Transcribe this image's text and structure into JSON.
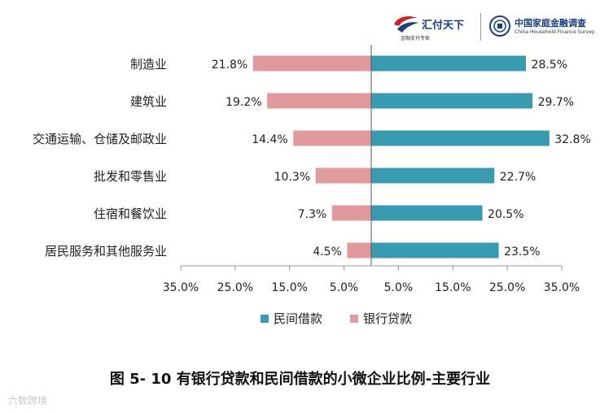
{
  "header": {
    "logo_left": {
      "name": "汇付天下",
      "tagline": "金融支付专家"
    },
    "logo_right": {
      "name": "中国家庭金融调查",
      "english": "China Household Finance Survey"
    }
  },
  "title": "图 5- 10 有银行贷款和民间借款的小微企业比例-主要行业",
  "watermark": "六数跨境",
  "colors": {
    "private_lending": "#3a9bb0",
    "bank_loan": "#de9a9c",
    "axis": "#999999",
    "text": "#222222"
  },
  "chart_data": {
    "type": "bar",
    "orientation": "horizontal-diverging",
    "categories": [
      "制造业",
      "建筑业",
      "交通运输、仓储及邮政业",
      "批发和零售业",
      "住宿和餐饮业",
      "居民服务和其他服务业"
    ],
    "series": [
      {
        "name": "民间借款",
        "direction": "right",
        "values": [
          28.5,
          29.7,
          32.8,
          22.7,
          20.5,
          23.5
        ],
        "labels": [
          "28.5%",
          "29.7%",
          "32.8%",
          "22.7%",
          "20.5%",
          "23.5%"
        ]
      },
      {
        "name": "银行贷款",
        "direction": "left",
        "values": [
          21.8,
          19.2,
          14.4,
          10.3,
          7.3,
          4.5
        ],
        "labels": [
          "21.8%",
          "19.2%",
          "14.4%",
          "10.3%",
          "7.3%",
          "4.5%"
        ]
      }
    ],
    "xlim": [
      -35,
      35
    ],
    "x_ticks": [
      "35.0%",
      "25.0%",
      "15.0%",
      "5.0%",
      "5.0%",
      "15.0%",
      "25.0%",
      "35.0%"
    ],
    "x_tick_values": [
      -35,
      -25,
      -15,
      -5,
      5,
      15,
      25,
      35
    ],
    "legend_position": "bottom",
    "grid": false
  }
}
